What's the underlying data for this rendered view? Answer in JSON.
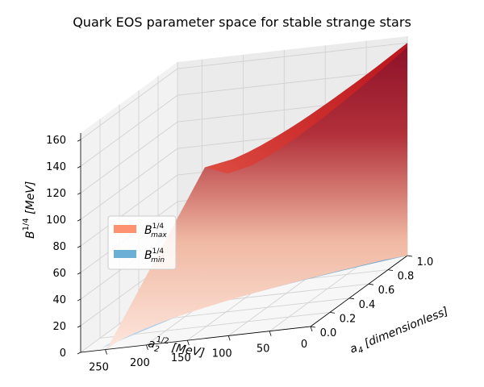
{
  "chart_data": {
    "type": "surface3d",
    "title": "Quark EOS parameter space for stable strange stars",
    "xlabel": {
      "base": "a",
      "sub": "2",
      "sup": "1/2",
      "unit": " [MeV]"
    },
    "ylabel": {
      "base": "a",
      "sub": "4",
      "unit": " [dimensionless]"
    },
    "zlabel": {
      "base": "B",
      "sup": "1/4",
      "unit": "  [MeV]"
    },
    "xlim": [
      0,
      280
    ],
    "ylim": [
      0,
      1.0
    ],
    "zlim": [
      0,
      165
    ],
    "x_ticks": [
      "250",
      "200",
      "150",
      "100",
      "50",
      "0"
    ],
    "x_tick_values": [
      250,
      200,
      150,
      100,
      50,
      0
    ],
    "y_ticks": [
      "0.0",
      "0.2",
      "0.4",
      "0.6",
      "0.8",
      "1.0"
    ],
    "y_tick_values": [
      0,
      0.2,
      0.4,
      0.6,
      0.8,
      1.0
    ],
    "z_ticks": [
      "0",
      "20",
      "40",
      "60",
      "80",
      "100",
      "120",
      "140",
      "160"
    ],
    "z_tick_values": [
      0,
      20,
      40,
      60,
      80,
      100,
      120,
      140,
      160
    ],
    "grid": true,
    "legend_position": "lower-left",
    "series": [
      {
        "name": "B_max^1/4",
        "label_base": "B",
        "label_sup": "1/4",
        "label_sub": "max",
        "colormap": "Reds",
        "legend_color": "#fc9272",
        "surface": "B^1/4 rises with a4 and falls as a2^1/2 grows; reaches ~160 MeV at a2^1/2 = 0, a4 = 1 and drops to 0 on the boundary curve"
      },
      {
        "name": "B_min^1/4",
        "label_base": "B",
        "label_sup": "1/4",
        "label_sub": "min",
        "colormap": "Blues",
        "legend_color": "#6baed6",
        "surface": "lies slightly below the B_max surface; ~145 MeV at a2^1/2 = 0, a4 = 1"
      }
    ]
  }
}
